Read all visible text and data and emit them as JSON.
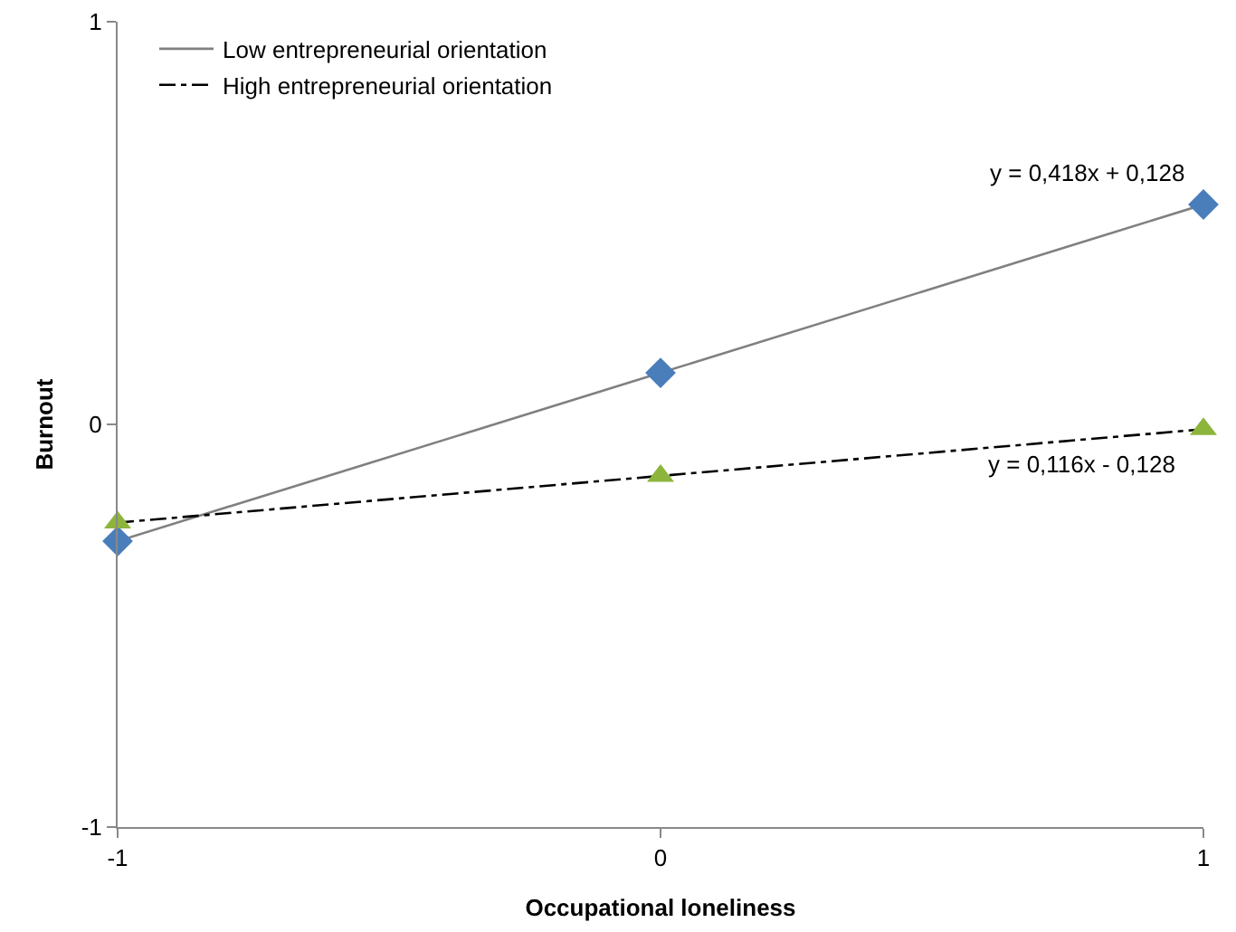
{
  "chart_data": {
    "type": "line",
    "xlabel": "Occupational loneliness",
    "ylabel": "Burnout",
    "x": [
      -1,
      0,
      1
    ],
    "series": [
      {
        "name": "Low entrepreneurial orientation",
        "color": "#808080",
        "values": [
          -0.29,
          0.128,
          0.546
        ],
        "marker": "none",
        "line_style": "solid"
      },
      {
        "name": "High entrepreneurial orientation",
        "color": "#000000",
        "values": [
          -0.244,
          -0.128,
          -0.012
        ],
        "marker": "none",
        "line_style": "dashed"
      },
      {
        "type": "scatter",
        "color": "#4a7ebb",
        "values": [
          -0.29,
          0.128,
          0.546
        ],
        "marker": "diamond"
      },
      {
        "type": "scatter",
        "color": "#8db53c",
        "values": [
          -0.244,
          -0.128,
          -0.012
        ],
        "marker": "triangle"
      }
    ],
    "xlim": [
      -1,
      1
    ],
    "xticks": [
      -1,
      0,
      1
    ],
    "ylim": [
      -1,
      1
    ],
    "yticks": [
      -1,
      0,
      1
    ],
    "grid": false,
    "legend": "top left",
    "annotations": [
      {
        "text": "y = 0,418x + 0,128",
        "x": 1,
        "y": 0.546
      },
      {
        "text": "y = 0,116x - 0,128",
        "x": 1,
        "y": -0.012
      }
    ]
  }
}
